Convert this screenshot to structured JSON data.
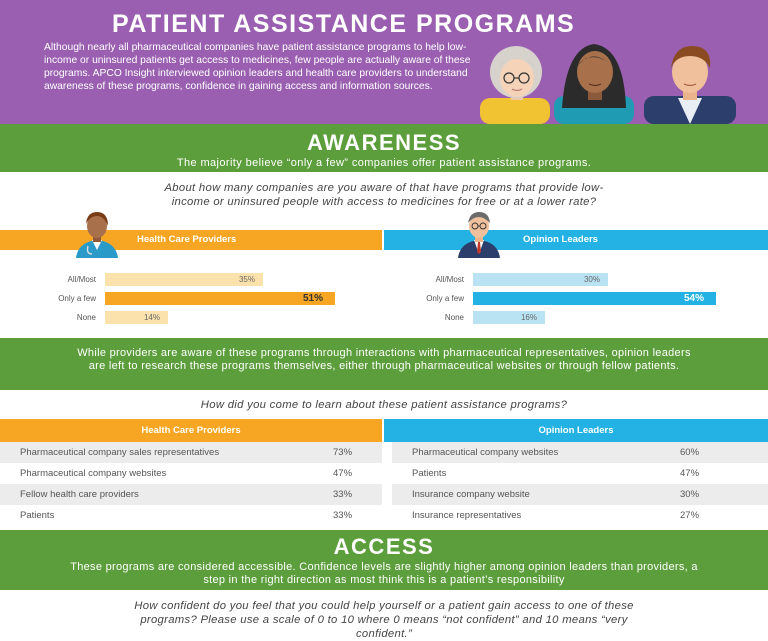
{
  "hero": {
    "title": "PATIENT ASSISTANCE PROGRAMS",
    "text": "Although nearly all pharmaceutical companies have patient assistance programs to help low-income or uninsured patients get access to medicines, few people are actually aware of these programs. APCO Insight interviewed opinion leaders and health care providers to understand awareness of these programs, confidence in gaining access and information sources."
  },
  "awareness": {
    "title": "AWARENESS",
    "subtitle": "The majority believe “only a few” companies offer patient assistance programs.",
    "question": "About how many companies are you aware of that have programs that provide low-income or uninsured people with access to medicines for free or at a lower rate?"
  },
  "middle_band": {
    "text": "While providers are aware of these programs through interactions with pharmaceutical representatives, opinion leaders are left to research these programs themselves, either through pharmaceutical websites or through fellow patients."
  },
  "learn_question": "How did you come to learn about these patient assistance programs?",
  "access": {
    "title": "ACCESS",
    "text": "These programs are considered accessible. Confidence levels are slightly higher among opinion leaders than providers, a step in the right direction as most think this is a patient’s responsibility",
    "question": "How confident do you feel that you could help yourself or a patient gain access to one of these programs? Please use a scale of 0 to 10 where 0 means “not confident” and 10 means “very confident.”"
  },
  "colors": {
    "purple": "#9a5fb0",
    "green": "#5c9e3c",
    "orange": "#f6a623",
    "orange_light": "#fbe2ad",
    "blue": "#23b2e3",
    "blue_light": "#b9e3f3"
  },
  "chart_data": [
    {
      "type": "bar",
      "title": "Health Care Providers",
      "categories": [
        "All/Most",
        "Only a few",
        "None"
      ],
      "values": [
        35,
        51,
        14
      ],
      "value_labels": [
        "35%",
        "51%",
        "14%"
      ],
      "highlight": "Only a few",
      "xlim": [
        0,
        100
      ]
    },
    {
      "type": "bar",
      "title": "Opinion Leaders",
      "categories": [
        "All/Most",
        "Only a few",
        "None"
      ],
      "values": [
        30,
        54,
        16
      ],
      "value_labels": [
        "30%",
        "54%",
        "16%"
      ],
      "highlight": "Only a few",
      "xlim": [
        0,
        100
      ]
    },
    {
      "type": "table",
      "title": "Health Care Providers",
      "rows": [
        {
          "source": "Pharmaceutical company sales representatives",
          "value": 73,
          "label": "73%"
        },
        {
          "source": "Pharmaceutical company websites",
          "value": 47,
          "label": "47%"
        },
        {
          "source": "Fellow health care providers",
          "value": 33,
          "label": "33%"
        },
        {
          "source": "Patients",
          "value": 33,
          "label": "33%"
        }
      ]
    },
    {
      "type": "table",
      "title": "Opinion Leaders",
      "rows": [
        {
          "source": "Pharmaceutical company websites",
          "value": 60,
          "label": "60%"
        },
        {
          "source": "Patients",
          "value": 47,
          "label": "47%"
        },
        {
          "source": "Insurance company website",
          "value": 30,
          "label": "30%"
        },
        {
          "source": "Insurance representatives",
          "value": 27,
          "label": "27%"
        }
      ]
    }
  ]
}
